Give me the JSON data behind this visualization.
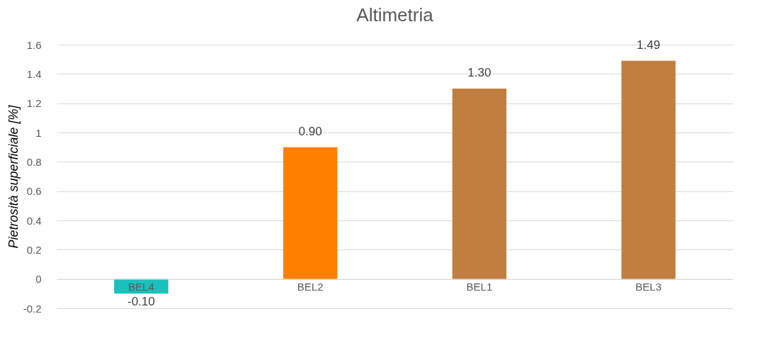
{
  "chart_data": {
    "type": "bar",
    "title": "Altimetria",
    "ylabel": "Pietrosità superficiale [%]",
    "categories": [
      "BEL4",
      "BEL2",
      "BEL1",
      "BEL3"
    ],
    "values": [
      -0.1,
      0.9,
      1.3,
      1.49
    ],
    "colors": [
      "#19c0bc",
      "#ff8000",
      "#c07f40",
      "#c07f40"
    ],
    "ylim": [
      -0.2,
      1.6
    ],
    "yticks": [
      -0.2,
      0,
      0.2,
      0.4,
      0.6,
      0.8,
      1,
      1.2,
      1.4,
      1.6
    ],
    "grid": "y",
    "value_labels": [
      "-0.10",
      "0.90",
      "1.30",
      "1.49"
    ]
  }
}
